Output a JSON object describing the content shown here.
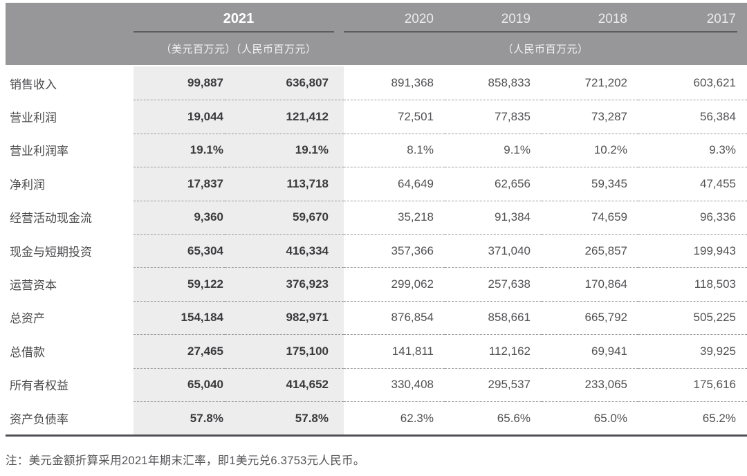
{
  "header": {
    "year_highlight": "2021",
    "years": [
      "2020",
      "2019",
      "2018",
      "2017"
    ],
    "unit_2021": "（美元百万元）（人民币百万元）",
    "unit_other": "（人民币百万元）"
  },
  "table": {
    "value_columns": [
      "usd_2021",
      "rmb_2021",
      "2020",
      "2019",
      "2018",
      "2017"
    ],
    "rows": [
      {
        "label": "销售收入",
        "values": [
          "99,887",
          "636,807",
          "891,368",
          "858,833",
          "721,202",
          "603,621"
        ]
      },
      {
        "label": "营业利润",
        "values": [
          "19,044",
          "121,412",
          "72,501",
          "77,835",
          "73,287",
          "56,384"
        ]
      },
      {
        "label": "营业利润率",
        "values": [
          "19.1%",
          "19.1%",
          "8.1%",
          "9.1%",
          "10.2%",
          "9.3%"
        ]
      },
      {
        "label": "净利润",
        "values": [
          "17,837",
          "113,718",
          "64,649",
          "62,656",
          "59,345",
          "47,455"
        ]
      },
      {
        "label": "经营活动现金流",
        "values": [
          "9,360",
          "59,670",
          "35,218",
          "91,384",
          "74,659",
          "96,336"
        ]
      },
      {
        "label": "现金与短期投资",
        "values": [
          "65,304",
          "416,334",
          "357,366",
          "371,040",
          "265,857",
          "199,943"
        ]
      },
      {
        "label": "运营资本",
        "values": [
          "59,122",
          "376,923",
          "299,062",
          "257,638",
          "170,864",
          "118,503"
        ]
      },
      {
        "label": "总资产",
        "values": [
          "154,184",
          "982,971",
          "876,854",
          "858,661",
          "665,792",
          "505,225"
        ]
      },
      {
        "label": "总借款",
        "values": [
          "27,465",
          "175,100",
          "141,811",
          "112,162",
          "69,941",
          "39,925"
        ]
      },
      {
        "label": "所有者权益",
        "values": [
          "65,040",
          "414,652",
          "330,408",
          "295,537",
          "233,065",
          "175,616"
        ]
      },
      {
        "label": "资产负债率",
        "values": [
          "57.8%",
          "57.8%",
          "62.3%",
          "65.6%",
          "65.0%",
          "65.2%"
        ]
      }
    ]
  },
  "note": "注：美元金额折算采用2021年期末汇率，即1美元兑6.3753元人民币。",
  "colors": {
    "header_band": "#97979a",
    "highlight_column": "#ededee",
    "bold_number": "#3a3a3c",
    "regular_number": "#525255",
    "bottom_border": "#515155"
  }
}
